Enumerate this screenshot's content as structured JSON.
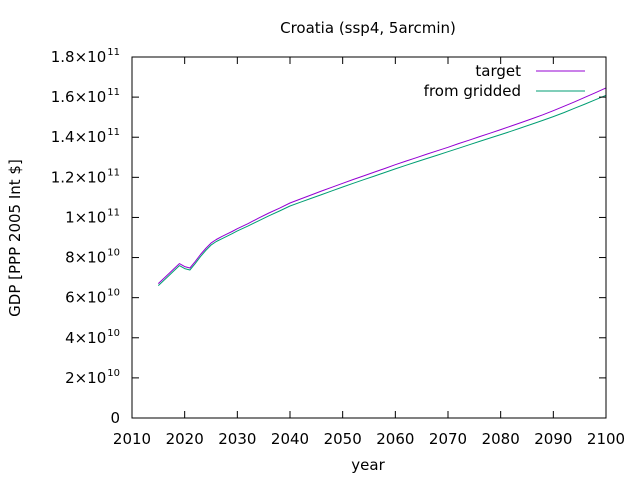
{
  "chart_data": {
    "type": "line",
    "title": "Croatia (ssp4, 5arcmin)",
    "xlabel": "year",
    "ylabel": "GDP [PPP 2005 Int $]",
    "xlim": [
      2010,
      2100
    ],
    "ylim": [
      0,
      180000000000
    ],
    "x_ticks": [
      2010,
      2020,
      2030,
      2040,
      2050,
      2060,
      2070,
      2080,
      2090,
      2100
    ],
    "y_ticks": [
      {
        "value": 0,
        "mantissa": "0",
        "exponent": ""
      },
      {
        "value": 20000000000,
        "mantissa": "2×10",
        "exponent": "10"
      },
      {
        "value": 40000000000,
        "mantissa": "4×10",
        "exponent": "10"
      },
      {
        "value": 60000000000,
        "mantissa": "6×10",
        "exponent": "10"
      },
      {
        "value": 80000000000,
        "mantissa": "8×10",
        "exponent": "10"
      },
      {
        "value": 100000000000,
        "mantissa": "1×10",
        "exponent": "11"
      },
      {
        "value": 120000000000,
        "mantissa": "1.2×10",
        "exponent": "11"
      },
      {
        "value": 140000000000,
        "mantissa": "1.4×10",
        "exponent": "11"
      },
      {
        "value": 160000000000,
        "mantissa": "1.6×10",
        "exponent": "11"
      },
      {
        "value": 180000000000,
        "mantissa": "1.8×10",
        "exponent": "11"
      }
    ],
    "grid": false,
    "legend_position": "top-right",
    "series": [
      {
        "name": "target",
        "color": "#9400d3",
        "points": [
          [
            2015,
            67000000000
          ],
          [
            2016,
            69500000000
          ],
          [
            2017,
            72000000000
          ],
          [
            2018,
            74500000000
          ],
          [
            2019,
            77000000000
          ],
          [
            2020,
            75500000000
          ],
          [
            2021,
            74800000000
          ],
          [
            2022,
            78000000000
          ],
          [
            2023,
            81500000000
          ],
          [
            2024,
            84500000000
          ],
          [
            2025,
            87200000000
          ],
          [
            2026,
            89000000000
          ],
          [
            2027,
            90400000000
          ],
          [
            2028,
            91700000000
          ],
          [
            2029,
            93000000000
          ],
          [
            2030,
            94400000000
          ],
          [
            2032,
            96900000000
          ],
          [
            2034,
            99600000000
          ],
          [
            2036,
            102200000000
          ],
          [
            2038,
            104600000000
          ],
          [
            2040,
            107200000000
          ],
          [
            2042,
            109200000000
          ],
          [
            2044,
            111200000000
          ],
          [
            2046,
            113200000000
          ],
          [
            2048,
            115100000000
          ],
          [
            2050,
            117000000000
          ],
          [
            2052,
            118900000000
          ],
          [
            2054,
            120700000000
          ],
          [
            2056,
            122600000000
          ],
          [
            2058,
            124400000000
          ],
          [
            2060,
            126300000000
          ],
          [
            2062,
            128100000000
          ],
          [
            2064,
            129800000000
          ],
          [
            2066,
            131600000000
          ],
          [
            2068,
            133300000000
          ],
          [
            2070,
            135000000000
          ],
          [
            2072,
            136800000000
          ],
          [
            2074,
            138500000000
          ],
          [
            2076,
            140300000000
          ],
          [
            2078,
            142000000000
          ],
          [
            2080,
            143800000000
          ],
          [
            2082,
            145600000000
          ],
          [
            2084,
            147400000000
          ],
          [
            2086,
            149300000000
          ],
          [
            2088,
            151200000000
          ],
          [
            2090,
            153200000000
          ],
          [
            2092,
            155400000000
          ],
          [
            2094,
            157600000000
          ],
          [
            2096,
            159900000000
          ],
          [
            2098,
            162200000000
          ],
          [
            2100,
            164600000000
          ]
        ]
      },
      {
        "name": "from gridded",
        "color": "#009e73",
        "points": [
          [
            2015,
            66000000000
          ],
          [
            2016,
            68500000000
          ],
          [
            2017,
            71000000000
          ],
          [
            2018,
            73500000000
          ],
          [
            2019,
            76000000000
          ],
          [
            2020,
            74500000000
          ],
          [
            2021,
            73800000000
          ],
          [
            2022,
            77000000000
          ],
          [
            2023,
            80500000000
          ],
          [
            2024,
            83500000000
          ],
          [
            2025,
            86200000000
          ],
          [
            2026,
            88000000000
          ],
          [
            2027,
            89300000000
          ],
          [
            2028,
            90600000000
          ],
          [
            2029,
            91900000000
          ],
          [
            2030,
            93300000000
          ],
          [
            2032,
            95700000000
          ],
          [
            2034,
            98300000000
          ],
          [
            2036,
            100800000000
          ],
          [
            2038,
            103200000000
          ],
          [
            2040,
            105700000000
          ],
          [
            2042,
            107600000000
          ],
          [
            2044,
            109500000000
          ],
          [
            2046,
            111400000000
          ],
          [
            2048,
            113300000000
          ],
          [
            2050,
            115200000000
          ],
          [
            2052,
            117000000000
          ],
          [
            2054,
            118800000000
          ],
          [
            2056,
            120600000000
          ],
          [
            2058,
            122400000000
          ],
          [
            2060,
            124200000000
          ],
          [
            2062,
            126000000000
          ],
          [
            2064,
            127700000000
          ],
          [
            2066,
            129400000000
          ],
          [
            2068,
            131100000000
          ],
          [
            2070,
            132800000000
          ],
          [
            2072,
            134500000000
          ],
          [
            2074,
            136200000000
          ],
          [
            2076,
            137900000000
          ],
          [
            2078,
            139600000000
          ],
          [
            2080,
            141300000000
          ],
          [
            2082,
            143000000000
          ],
          [
            2084,
            144800000000
          ],
          [
            2086,
            146600000000
          ],
          [
            2088,
            148400000000
          ],
          [
            2090,
            150300000000
          ],
          [
            2092,
            152300000000
          ],
          [
            2094,
            154400000000
          ],
          [
            2096,
            156500000000
          ],
          [
            2098,
            158700000000
          ],
          [
            2100,
            160900000000
          ]
        ]
      }
    ]
  }
}
